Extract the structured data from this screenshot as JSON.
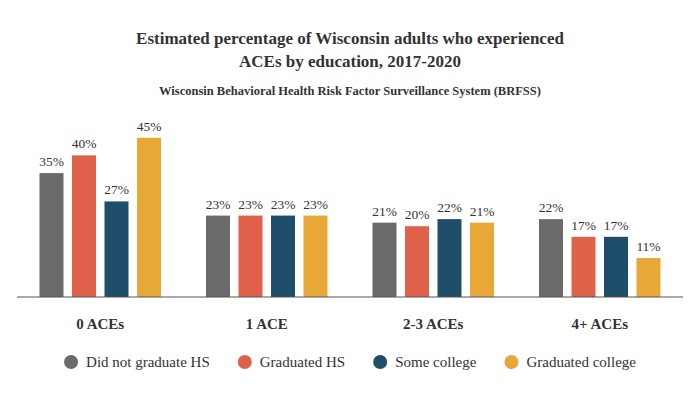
{
  "chart_data": {
    "type": "bar",
    "title": "Estimated percentage of Wisconsin adults who experienced\nACEs by education, 2017-2020",
    "subtitle": "Wisconsin Behavioral Health Risk Factor Surveillance System (BRFSS)",
    "categories": [
      "0 ACEs",
      "1 ACE",
      "2-3 ACEs",
      "4+ ACEs"
    ],
    "series": [
      {
        "name": "Did not graduate HS",
        "color": "#6b6b6b",
        "values": [
          35,
          23,
          21,
          22
        ],
        "value_labels": [
          "35%",
          "23%",
          "21%",
          "22%"
        ]
      },
      {
        "name": "Graduated HS",
        "color": "#e0614a",
        "values": [
          40,
          23,
          20,
          17
        ],
        "value_labels": [
          "40%",
          "23%",
          "20%",
          "17%"
        ]
      },
      {
        "name": "Some college",
        "color": "#1f4e6b",
        "values": [
          27,
          23,
          22,
          17
        ],
        "value_labels": [
          "27%",
          "23%",
          "22%",
          "17%"
        ]
      },
      {
        "name": "Graduated college",
        "color": "#e8a838",
        "values": [
          45,
          23,
          21,
          11
        ],
        "value_labels": [
          "45%",
          "23%",
          "21%",
          "11%"
        ]
      }
    ],
    "ylim": [
      0,
      50
    ],
    "tick_labels": false,
    "data_labels": true,
    "legend": "bottom"
  }
}
